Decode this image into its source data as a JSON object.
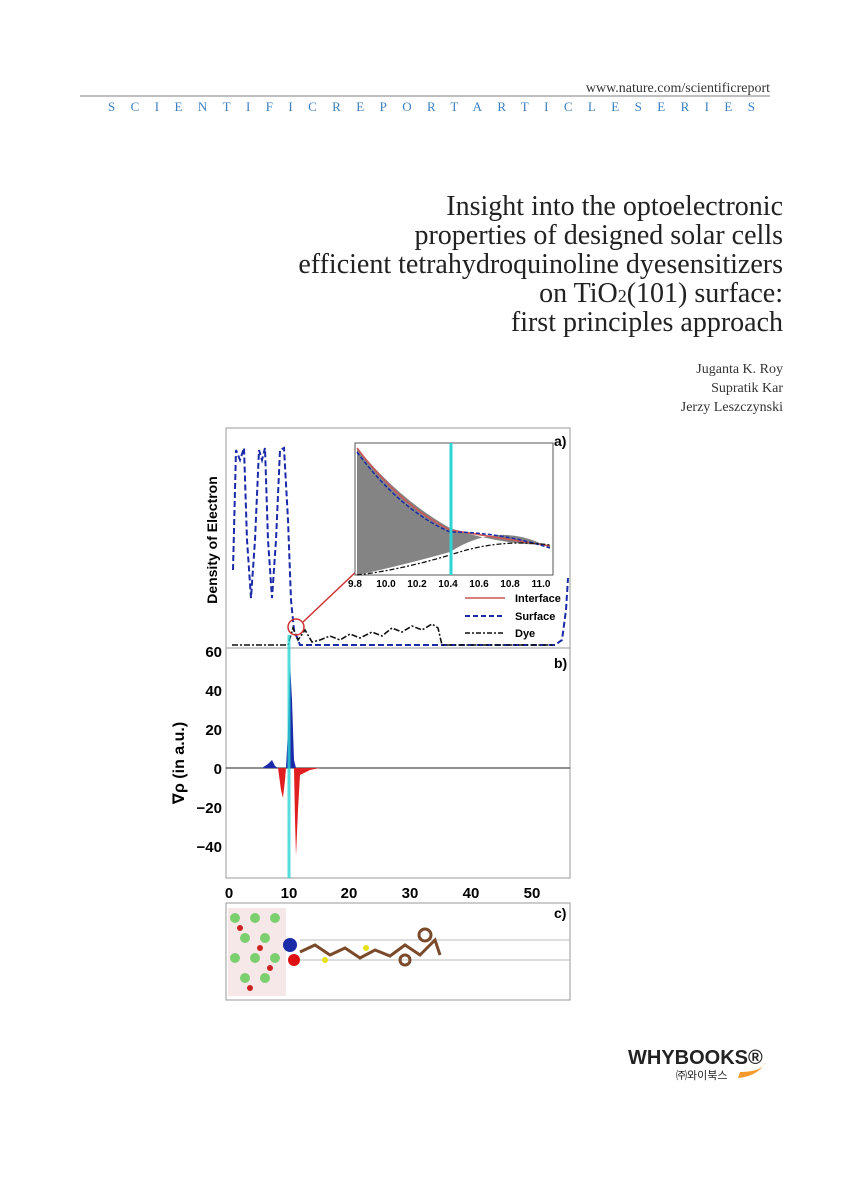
{
  "header": {
    "url": "www.nature.com/scientificreport",
    "series": "SCIENTIFICREPORTARTICLESERIES"
  },
  "title": {
    "lines": [
      "Insight into the optoelectronic",
      "properties of designed solar cells",
      "efficient tetrahydroquinoline dyesensitizers"
    ],
    "formula_line": {
      "before": "on TiO",
      "sub": "2",
      "after": "(101) surface:"
    },
    "last_line": "first principles approach"
  },
  "authors": [
    "Juganta K. Roy",
    "Supratik Kar",
    "Jerzy Leszczynski"
  ],
  "figure": {
    "panel_labels": [
      "a)",
      "b)",
      "c)"
    ],
    "panel_a_ylabel": "Density of Electron",
    "panel_b_ylabel": "∇ρ (in a.u.)",
    "panel_b_yticks": [
      "60",
      "40",
      "20",
      "0",
      "−20",
      "−40"
    ],
    "xticks": [
      "0",
      "10",
      "20",
      "30",
      "40",
      "50"
    ],
    "inset_xticks": [
      "9.8",
      "10.0",
      "10.2",
      "10.4",
      "10.6",
      "10.8",
      "11.0"
    ],
    "legend": [
      "Interface",
      "Surface",
      "Dye"
    ]
  },
  "publisher": {
    "name": "WHYBOOKS®",
    "korean": "㈜와이북스"
  }
}
